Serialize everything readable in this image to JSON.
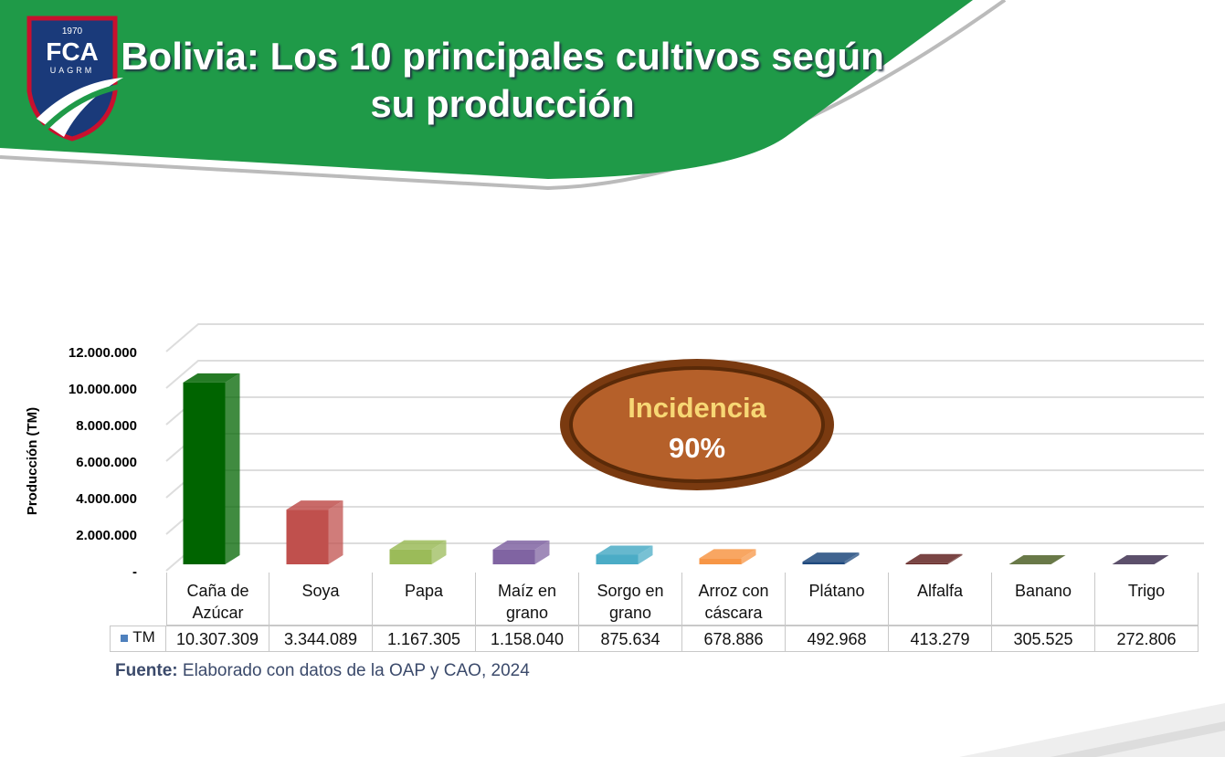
{
  "logo": {
    "year": "1970",
    "name": "FCA",
    "university": "UAGRM"
  },
  "chart_data": {
    "type": "bar",
    "title": "Bolivia: Los 10 principales cultivos según su producción",
    "y_label": "Producción (TM)",
    "categories": [
      "Caña de Azúcar",
      "Soya",
      "Papa",
      "Maíz en grano",
      "Sorgo en grano",
      "Arroz con cáscara",
      "Plátano",
      "Alfalfa",
      "Banano",
      "Trigo"
    ],
    "series": [
      {
        "name": "TM",
        "color": "#4f81bd",
        "bar_colors": [
          "#006400",
          "#c0504d",
          "#9bbb59",
          "#8064a2",
          "#4bacc6",
          "#f79646",
          "#1f497d",
          "#632523",
          "#4f6228",
          "#3f3151"
        ],
        "values": [
          10307309,
          3344089,
          1167305,
          1158040,
          875634,
          678886,
          492968,
          413279,
          305525,
          272806
        ],
        "value_labels": [
          "10.307.309",
          "3.344.089",
          "1.167.305",
          "1.158.040",
          "875.634",
          "678.886",
          "492.968",
          "413.279",
          "305.525",
          "272.806"
        ]
      }
    ],
    "ylim": [
      0,
      12000000
    ],
    "yticks": [
      {
        "value": 0,
        "label": "-"
      },
      {
        "value": 2000000,
        "label": "2.000.000"
      },
      {
        "value": 4000000,
        "label": "4.000.000"
      },
      {
        "value": 6000000,
        "label": "6.000.000"
      },
      {
        "value": 8000000,
        "label": "8.000.000"
      },
      {
        "value": 10000000,
        "label": "10.000.000"
      },
      {
        "value": 12000000,
        "label": "12.000.000"
      }
    ],
    "grid": true,
    "annotation": {
      "title": "Incidencia",
      "value": "90%"
    },
    "source_label": "Fuente:",
    "source_text": "Elaborado con datos de la OAP y CAO, 2024"
  }
}
